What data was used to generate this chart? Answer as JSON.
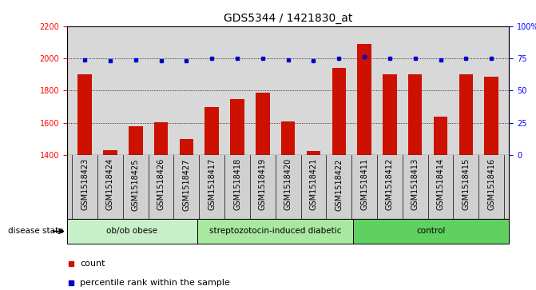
{
  "title": "GDS5344 / 1421830_at",
  "categories": [
    "GSM1518423",
    "GSM1518424",
    "GSM1518425",
    "GSM1518426",
    "GSM1518427",
    "GSM1518417",
    "GSM1518418",
    "GSM1518419",
    "GSM1518420",
    "GSM1518421",
    "GSM1518422",
    "GSM1518411",
    "GSM1518412",
    "GSM1518413",
    "GSM1518414",
    "GSM1518415",
    "GSM1518416"
  ],
  "bar_values": [
    1900,
    1430,
    1580,
    1605,
    1500,
    1700,
    1750,
    1785,
    1610,
    1425,
    1940,
    2090,
    1900,
    1900,
    1640,
    1900,
    1885
  ],
  "percentile_values": [
    74,
    73,
    74,
    73,
    73,
    75,
    75,
    75,
    74,
    73,
    75,
    76,
    75,
    75,
    74,
    75,
    75
  ],
  "groups": [
    {
      "label": "ob/ob obese",
      "start": 0,
      "end": 5,
      "color": "#c8f0c8"
    },
    {
      "label": "streptozotocin-induced diabetic",
      "start": 5,
      "end": 11,
      "color": "#a8e8a0"
    },
    {
      "label": "control",
      "start": 11,
      "end": 17,
      "color": "#60d060"
    }
  ],
  "ylim_left": [
    1400,
    2200
  ],
  "ylim_right": [
    0,
    100
  ],
  "yticks_left": [
    1400,
    1600,
    1800,
    2000,
    2200
  ],
  "yticks_right": [
    0,
    25,
    50,
    75,
    100
  ],
  "bar_color": "#cc1100",
  "dot_color": "#0000cc",
  "plot_bg_color": "#d8d8d8",
  "label_bg_color": "#d0d0d0",
  "grid_color": "#000000",
  "title_fontsize": 10,
  "tick_fontsize": 7,
  "label_fontsize": 7.5
}
